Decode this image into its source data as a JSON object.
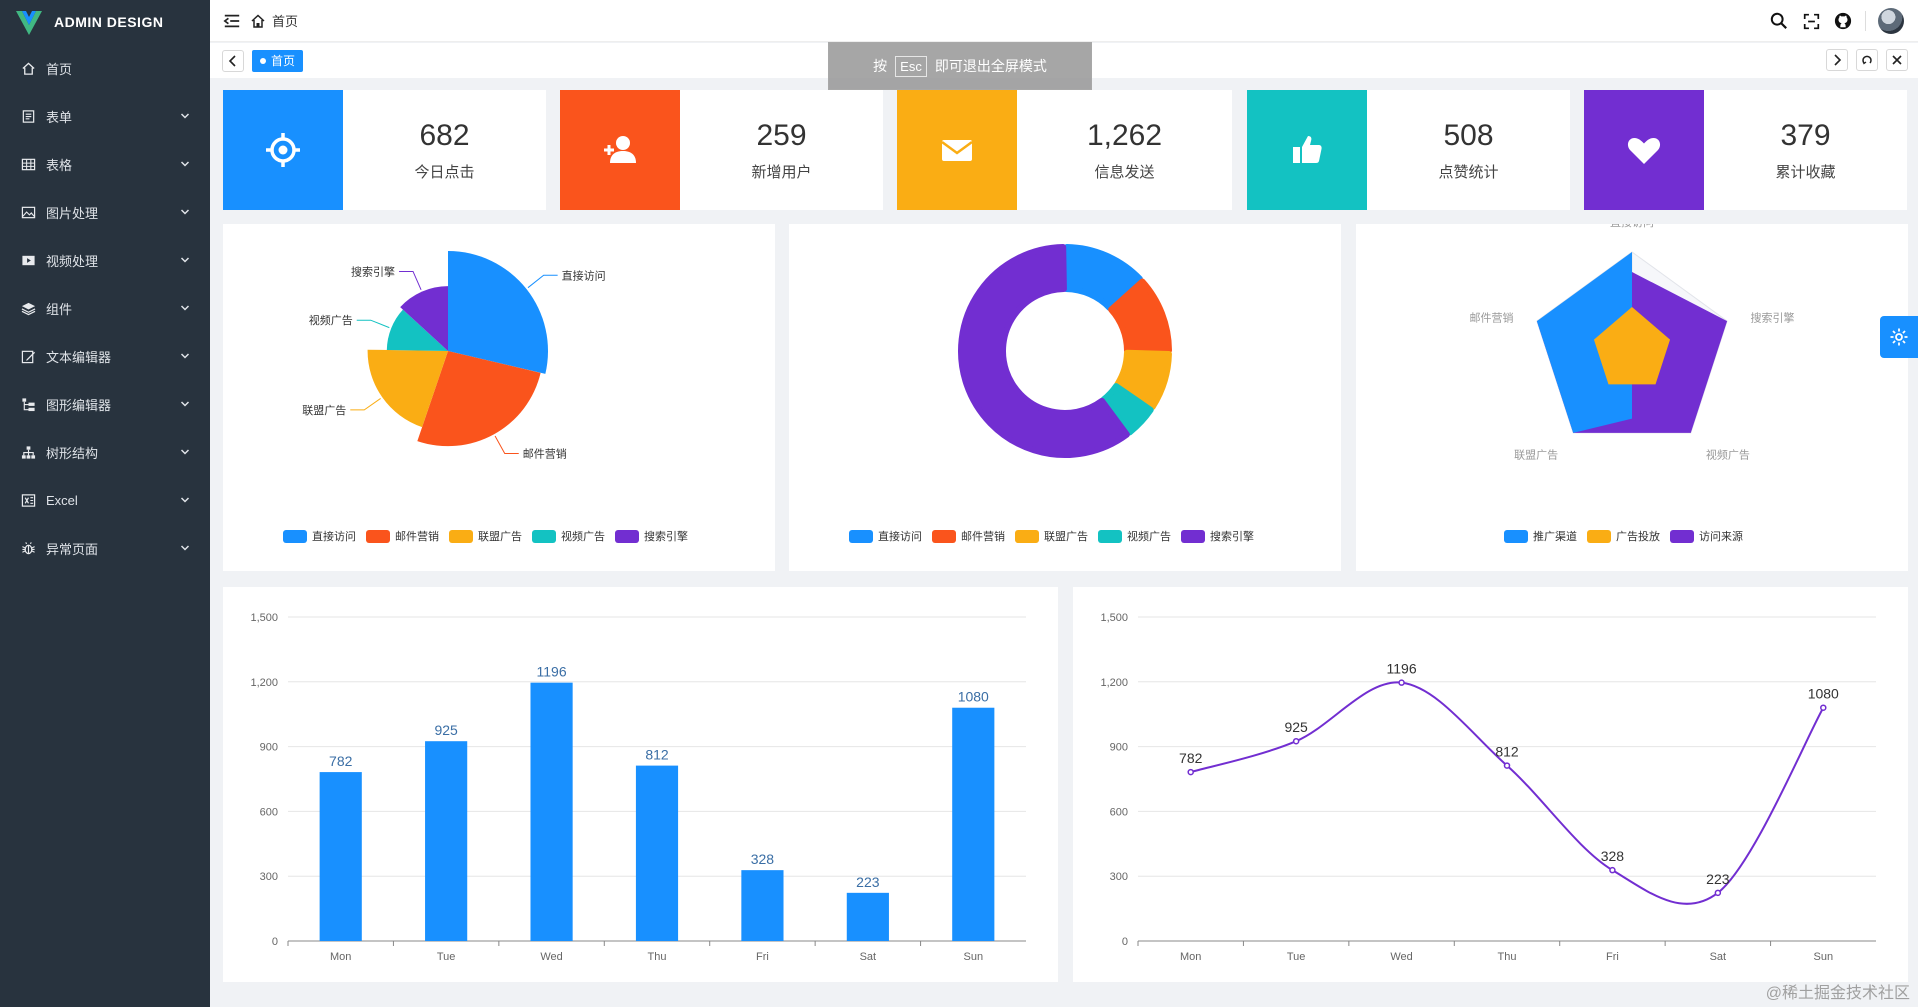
{
  "app": {
    "logo_text": "ADMIN DESIGN"
  },
  "sidebar": {
    "items": [
      {
        "label": "首页",
        "icon": "home-icon",
        "has_children": false
      },
      {
        "label": "表单",
        "icon": "form-icon",
        "has_children": true
      },
      {
        "label": "表格",
        "icon": "table-icon",
        "has_children": true
      },
      {
        "label": "图片处理",
        "icon": "image-icon",
        "has_children": true
      },
      {
        "label": "视频处理",
        "icon": "video-icon",
        "has_children": true
      },
      {
        "label": "组件",
        "icon": "layers-icon",
        "has_children": true
      },
      {
        "label": "文本编辑器",
        "icon": "edit-icon",
        "has_children": true
      },
      {
        "label": "图形编辑器",
        "icon": "flow-icon",
        "has_children": true
      },
      {
        "label": "树形结构",
        "icon": "tree-icon",
        "has_children": true
      },
      {
        "label": "Excel",
        "icon": "excel-icon",
        "has_children": true
      },
      {
        "label": "异常页面",
        "icon": "bug-icon",
        "has_children": true
      }
    ]
  },
  "header": {
    "breadcrumb": "首页"
  },
  "tabs": {
    "active_label": "首页"
  },
  "fullscreen_notice": {
    "prefix": "按",
    "key": "Esc",
    "suffix": "即可退出全屏模式"
  },
  "stats": [
    {
      "value": "682",
      "label": "今日点击",
      "color": "#1890ff",
      "icon": "target-icon"
    },
    {
      "value": "259",
      "label": "新增用户",
      "color": "#fa541c",
      "icon": "add-user-icon"
    },
    {
      "value": "1,262",
      "label": "信息发送",
      "color": "#faad14",
      "icon": "mail-icon"
    },
    {
      "value": "508",
      "label": "点赞统计",
      "color": "#13c2c2",
      "icon": "thumbs-up-icon"
    },
    {
      "value": "379",
      "label": "累计收藏",
      "color": "#722ed1",
      "icon": "heart-icon"
    }
  ],
  "colors": {
    "blue": "#1890ff",
    "orange": "#fa541c",
    "yellow": "#faad14",
    "cyan": "#13c2c2",
    "purple": "#722ed1"
  },
  "chart_data": [
    {
      "type": "pie",
      "variant": "rose",
      "labels": [
        "直接访问",
        "邮件营销",
        "联盟广告",
        "视频广告",
        "搜索引擎"
      ],
      "values": [
        335,
        310,
        234,
        135,
        154
      ],
      "legend_position": "bottom"
    },
    {
      "type": "pie",
      "variant": "donut",
      "labels": [
        "直接访问",
        "邮件营销",
        "联盟广告",
        "视频广告",
        "搜索引擎"
      ],
      "values": [
        335,
        310,
        234,
        135,
        1548
      ],
      "legend_position": "bottom"
    },
    {
      "type": "radar",
      "indicators": [
        "直接访问",
        "搜索引擎",
        "视频广告",
        "联盟广告",
        "邮件营销"
      ],
      "series": [
        {
          "name": "推广渠道",
          "values": [
            100,
            80,
            70,
            80,
            80
          ]
        },
        {
          "name": "广告投放",
          "values": [
            80,
            100,
            100,
            100,
            100
          ]
        },
        {
          "name": "访问来源",
          "values": [
            45,
            40,
            40,
            40,
            40
          ]
        }
      ],
      "max": 100,
      "legend_position": "bottom"
    },
    {
      "type": "bar",
      "categories": [
        "Mon",
        "Tue",
        "Wed",
        "Thu",
        "Fri",
        "Sat",
        "Sun"
      ],
      "values": [
        782,
        925,
        1196,
        812,
        328,
        223,
        1080
      ],
      "ylim": [
        0,
        1500
      ],
      "yticks": [
        "0",
        "300",
        "600",
        "900",
        "1,200",
        "1,500"
      ],
      "grid": true
    },
    {
      "type": "line",
      "smooth": true,
      "categories": [
        "Mon",
        "Tue",
        "Wed",
        "Thu",
        "Fri",
        "Sat",
        "Sun"
      ],
      "values": [
        782,
        925,
        1196,
        812,
        328,
        223,
        1080
      ],
      "ylim": [
        0,
        1500
      ],
      "yticks": [
        "0",
        "300",
        "600",
        "900",
        "1,200",
        "1,500"
      ],
      "grid": true
    }
  ],
  "watermark": "@稀土掘金技术社区"
}
